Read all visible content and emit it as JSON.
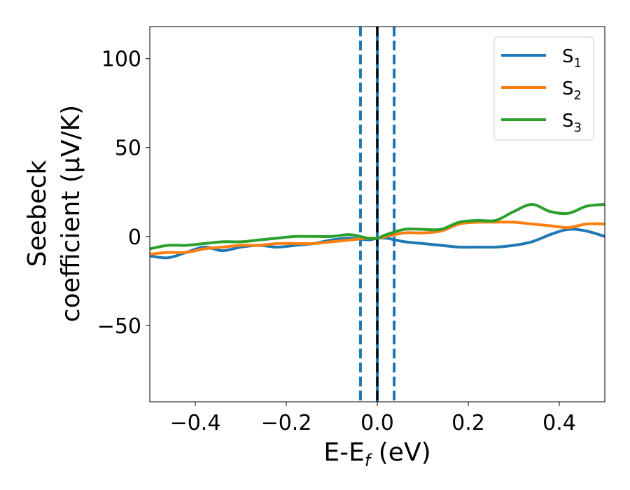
{
  "chart_data": {
    "type": "line",
    "xlabel": "E-E_f (eV)",
    "ylabel_lines": [
      "Seebeck",
      "coefficient  (μV/K)"
    ],
    "xlim": [
      -0.5,
      0.5
    ],
    "ylim": [
      -93,
      118
    ],
    "xticks": [
      -0.4,
      -0.2,
      0.0,
      0.2,
      0.4
    ],
    "xtick_labels": [
      "−0.4",
      "−0.2",
      "0.0",
      "0.2",
      "0.4"
    ],
    "yticks": [
      100,
      50,
      0,
      -50
    ],
    "ytick_labels": [
      "100",
      "50",
      "0",
      "−50"
    ],
    "grid": false,
    "legend_position": "top-right",
    "vlines": [
      {
        "x": -0.037,
        "style": "dashed",
        "color": "#1f77b4"
      },
      {
        "x": 0.0,
        "style": "solid",
        "color": "#1f77b4"
      },
      {
        "x": 0.0,
        "style": "dashed",
        "color": "#000000"
      },
      {
        "x": 0.037,
        "style": "dashed",
        "color": "#1f77b4"
      }
    ],
    "series": [
      {
        "name": "S1",
        "label_main": "S",
        "label_sub": "1",
        "color": "#1f77b4",
        "x": [
          -0.5,
          -0.46,
          -0.42,
          -0.38,
          -0.34,
          -0.3,
          -0.26,
          -0.22,
          -0.18,
          -0.14,
          -0.1,
          -0.06,
          -0.02,
          0.0,
          0.02,
          0.06,
          0.1,
          0.14,
          0.18,
          0.22,
          0.26,
          0.3,
          0.34,
          0.38,
          0.42,
          0.46,
          0.5
        ],
        "values": [
          -11,
          -12,
          -9,
          -6,
          -8,
          -6,
          -5,
          -6,
          -5,
          -4,
          -2,
          -1,
          -2,
          -1,
          -1,
          -3,
          -4,
          -5,
          -6,
          -6,
          -6,
          -5,
          -3,
          1,
          4,
          3,
          0
        ]
      },
      {
        "name": "S2",
        "label_main": "S",
        "label_sub": "2",
        "color": "#ff7f0e",
        "x": [
          -0.5,
          -0.46,
          -0.42,
          -0.38,
          -0.34,
          -0.3,
          -0.26,
          -0.22,
          -0.18,
          -0.14,
          -0.1,
          -0.06,
          -0.02,
          0.0,
          0.02,
          0.06,
          0.1,
          0.14,
          0.18,
          0.22,
          0.26,
          0.3,
          0.34,
          0.38,
          0.42,
          0.46,
          0.5
        ],
        "values": [
          -10,
          -9,
          -9,
          -7,
          -6,
          -5,
          -5,
          -4,
          -4,
          -4,
          -3,
          -2,
          -1,
          -1,
          0,
          2,
          2,
          3,
          7,
          8,
          8,
          8,
          7,
          6,
          5,
          7,
          7
        ]
      },
      {
        "name": "S3",
        "label_main": "S",
        "label_sub": "3",
        "color": "#2ca02c",
        "x": [
          -0.5,
          -0.46,
          -0.42,
          -0.38,
          -0.34,
          -0.3,
          -0.26,
          -0.22,
          -0.18,
          -0.14,
          -0.1,
          -0.06,
          -0.02,
          0.0,
          0.02,
          0.06,
          0.1,
          0.14,
          0.18,
          0.22,
          0.26,
          0.3,
          0.34,
          0.38,
          0.42,
          0.46,
          0.5
        ],
        "values": [
          -7,
          -5,
          -5,
          -4,
          -3,
          -3,
          -2,
          -1,
          0,
          0,
          0,
          1,
          -1,
          -1,
          1,
          4,
          4,
          4,
          8,
          9,
          9,
          14,
          18,
          14,
          13,
          17,
          18
        ]
      }
    ]
  }
}
